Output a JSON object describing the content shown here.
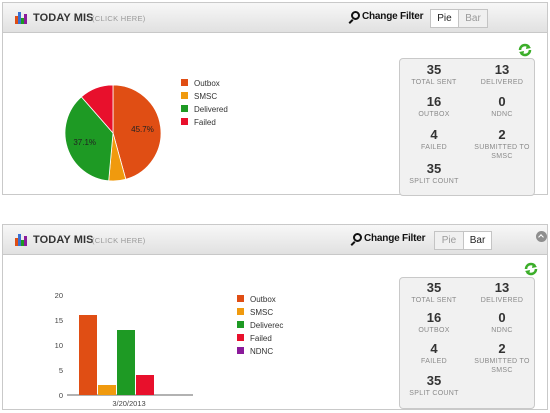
{
  "colors": {
    "outbox": "#e04e14",
    "smsc": "#f09a0e",
    "delivered": "#1e9a24",
    "failed": "#e8102c",
    "ndnc": "#8a1a9a",
    "refresh": "#3cae2a"
  },
  "panels": [
    {
      "title": "TODAY MIS",
      "click_here": "(CLICK HERE)",
      "change_filter": "Change Filter",
      "tabs": [
        {
          "label": "Pie",
          "active": true
        },
        {
          "label": "Bar",
          "active": false
        }
      ],
      "legend": [
        "Outbox",
        "SMSC",
        "Delivered",
        "Failed"
      ],
      "stats": [
        {
          "value": "35",
          "label": "TOTAL SENT"
        },
        {
          "value": "13",
          "label": "DELIVERED"
        },
        {
          "value": "16",
          "label": "OUTBOX"
        },
        {
          "value": "0",
          "label": "NDNC"
        },
        {
          "value": "4",
          "label": "FAILED"
        },
        {
          "value": "2",
          "label": "SUBMITTED TO SMSC"
        },
        {
          "value": "35",
          "label": "SPLIT COUNT"
        }
      ]
    },
    {
      "title": "TODAY MIS",
      "click_here": "(CLICK HERE)",
      "change_filter": "Change Filter",
      "tabs": [
        {
          "label": "Pie",
          "active": false
        },
        {
          "label": "Bar",
          "active": true
        }
      ],
      "legend": [
        "Outbox",
        "SMSC",
        "Deliverec",
        "Failed",
        "NDNC"
      ],
      "stats": [
        {
          "value": "35",
          "label": "TOTAL SENT"
        },
        {
          "value": "13",
          "label": "DELIVERED"
        },
        {
          "value": "16",
          "label": "OUTBOX"
        },
        {
          "value": "0",
          "label": "NDNC"
        },
        {
          "value": "4",
          "label": "FAILED"
        },
        {
          "value": "2",
          "label": "SUBMITTED TO SMSC"
        },
        {
          "value": "35",
          "label": "SPLIT COUNT"
        }
      ]
    }
  ],
  "chart_data": [
    {
      "type": "pie",
      "categories": [
        "Outbox",
        "SMSC",
        "Delivered",
        "Failed"
      ],
      "values": [
        16,
        2,
        13,
        4
      ],
      "data_labels": [
        "45.7%",
        "",
        "37.1%",
        ""
      ],
      "legend_position": "right"
    },
    {
      "type": "bar",
      "categories": [
        "3/20/2013"
      ],
      "series": [
        {
          "name": "Outbox",
          "values": [
            16
          ]
        },
        {
          "name": "SMSC",
          "values": [
            2
          ]
        },
        {
          "name": "Deliverec",
          "values": [
            13
          ]
        },
        {
          "name": "Failed",
          "values": [
            4
          ]
        },
        {
          "name": "NDNC",
          "values": [
            0
          ]
        }
      ],
      "ylim": [
        0,
        20
      ],
      "yticks": [
        "0",
        "5",
        "10",
        "15",
        "20"
      ],
      "legend_position": "right"
    }
  ]
}
